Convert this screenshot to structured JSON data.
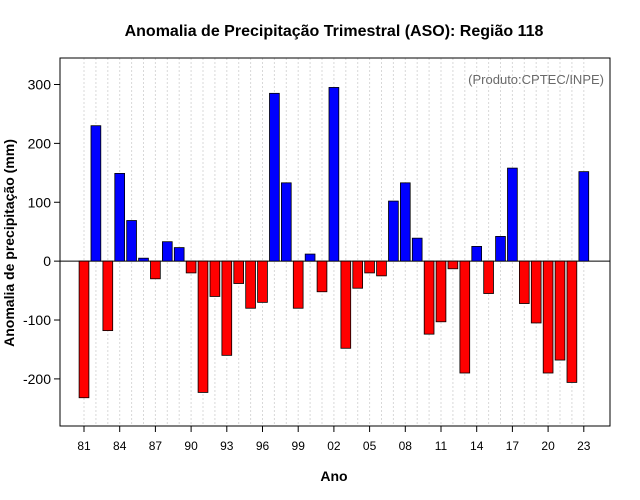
{
  "chart_data": {
    "type": "bar",
    "title": "Anomalia de Precipitação Trimestral (ASO): Região 118",
    "xlabel": "Ano",
    "ylabel": "Anomalia de precipitação (mm)",
    "annotation": "(Produto:CPTEC/INPE)",
    "ylim": [
      -280,
      345
    ],
    "yticks": [
      -200,
      -100,
      0,
      100,
      200,
      300
    ],
    "x_tick_labels": [
      "81",
      "84",
      "87",
      "90",
      "93",
      "96",
      "99",
      "02",
      "05",
      "08",
      "11",
      "14",
      "17",
      "20",
      "23"
    ],
    "grid": true,
    "years": [
      1981,
      1982,
      1983,
      1984,
      1985,
      1986,
      1987,
      1988,
      1989,
      1990,
      1991,
      1992,
      1993,
      1994,
      1995,
      1996,
      1997,
      1998,
      1999,
      2000,
      2001,
      2002,
      2003,
      2004,
      2005,
      2006,
      2007,
      2008,
      2009,
      2010,
      2011,
      2012,
      2013,
      2014,
      2015,
      2016,
      2017,
      2018,
      2019,
      2020,
      2021,
      2022,
      2023
    ],
    "values": [
      -232,
      230,
      -118,
      149,
      69,
      5,
      -30,
      33,
      23,
      -20,
      -223,
      -60,
      -160,
      -38,
      -80,
      -70,
      285,
      133,
      -80,
      12,
      -52,
      295,
      -148,
      -46,
      -20,
      -25,
      102,
      133,
      39,
      -124,
      -103,
      -13,
      -190,
      25,
      -55,
      42,
      158,
      -72,
      -105,
      -190,
      -168,
      -206,
      152
    ],
    "colors": {
      "positive": "#0000ff",
      "negative": "#ff0000"
    }
  }
}
